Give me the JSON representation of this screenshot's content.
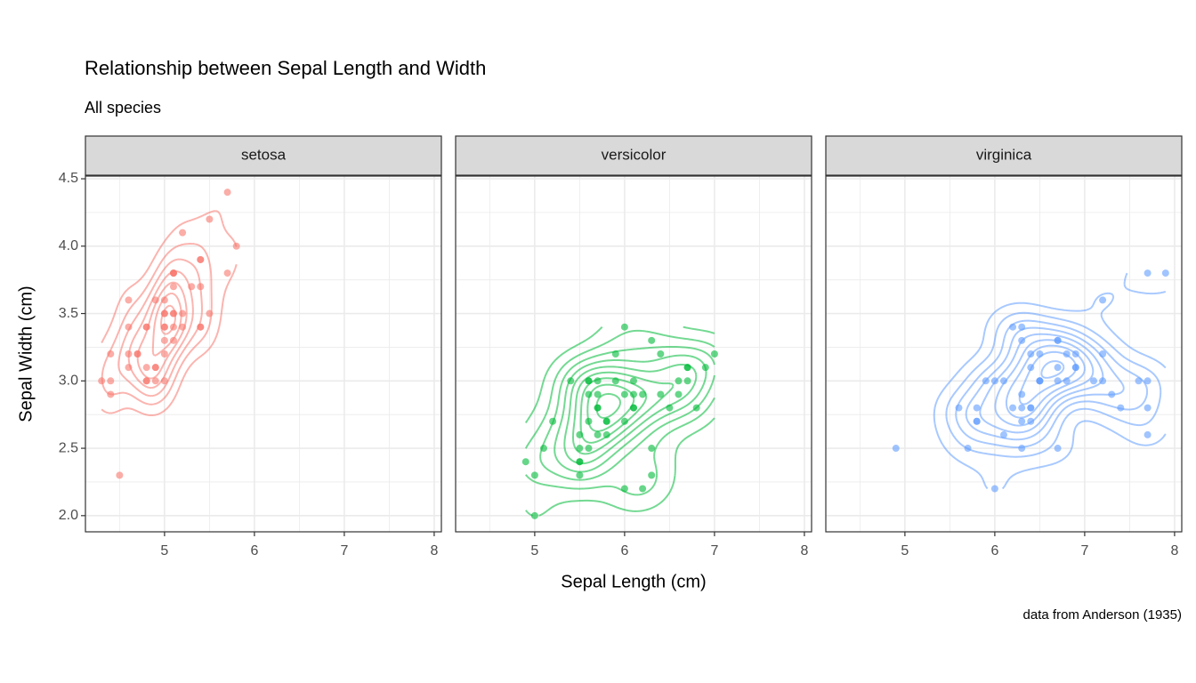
{
  "title": "Relationship between Sepal Length and Width",
  "subtitle": "All species",
  "xlabel": "Sepal Length (cm)",
  "ylabel": "Sepal Width (cm)",
  "caption": "data from Anderson (1935)",
  "chart_data": [
    {
      "type": "scatter",
      "title": "setosa",
      "color": "#F8766D",
      "density_contours": true,
      "grid": true,
      "xlim": [
        4.12,
        8.08
      ],
      "ylim": [
        1.88,
        4.52
      ],
      "xticks": [
        5,
        6,
        7,
        8
      ],
      "yticks": [
        {
          "value": 2,
          "label": "2.0"
        },
        2.5,
        {
          "value": 3,
          "label": "3.0"
        },
        3.5,
        {
          "value": 4,
          "label": "4.0"
        },
        4.5
      ],
      "x": [
        5.1,
        4.9,
        4.7,
        4.6,
        5.0,
        5.4,
        4.6,
        5.0,
        4.4,
        4.9,
        5.4,
        4.8,
        4.8,
        4.3,
        5.8,
        5.7,
        5.4,
        5.1,
        5.7,
        5.1,
        5.4,
        5.1,
        4.6,
        5.1,
        4.8,
        5.0,
        5.0,
        5.2,
        5.2,
        4.7,
        4.8,
        5.4,
        5.2,
        5.5,
        4.9,
        5.0,
        5.5,
        4.9,
        4.4,
        5.1,
        5.0,
        4.5,
        4.4,
        5.0,
        5.1,
        4.8,
        5.1,
        4.6,
        5.3,
        5.0
      ],
      "values": [
        3.5,
        3.0,
        3.2,
        3.1,
        3.6,
        3.9,
        3.4,
        3.4,
        2.9,
        3.1,
        3.7,
        3.4,
        3.0,
        3.0,
        4.0,
        4.4,
        3.9,
        3.5,
        3.8,
        3.8,
        3.4,
        3.7,
        3.6,
        3.3,
        3.4,
        3.0,
        3.4,
        3.5,
        3.4,
        3.2,
        3.1,
        3.4,
        4.1,
        4.2,
        3.1,
        3.2,
        3.5,
        3.6,
        3.0,
        3.4,
        3.5,
        2.3,
        3.2,
        3.5,
        3.8,
        3.0,
        3.8,
        3.2,
        3.7,
        3.3
      ]
    },
    {
      "type": "scatter",
      "title": "versicolor",
      "color": "#00BA38",
      "density_contours": true,
      "grid": true,
      "xlim": [
        4.12,
        8.08
      ],
      "ylim": [
        1.88,
        4.52
      ],
      "xticks": [
        5,
        6,
        7,
        8
      ],
      "yticks": [
        {
          "value": 2,
          "label": "2.0"
        },
        2.5,
        {
          "value": 3,
          "label": "3.0"
        },
        3.5,
        {
          "value": 4,
          "label": "4.0"
        },
        4.5
      ],
      "x": [
        7.0,
        6.4,
        6.9,
        5.5,
        6.5,
        5.7,
        6.3,
        4.9,
        6.6,
        5.2,
        5.0,
        5.9,
        6.0,
        6.1,
        5.6,
        6.7,
        5.6,
        5.8,
        6.2,
        5.6,
        5.9,
        6.1,
        6.3,
        6.1,
        6.4,
        6.6,
        6.8,
        6.7,
        6.0,
        5.7,
        5.5,
        5.5,
        5.8,
        6.0,
        5.4,
        6.0,
        6.7,
        6.3,
        5.6,
        5.5,
        5.5,
        6.1,
        5.8,
        5.0,
        5.6,
        5.7,
        5.7,
        6.2,
        5.1,
        5.7
      ],
      "values": [
        3.2,
        3.2,
        3.1,
        2.3,
        2.8,
        2.8,
        3.3,
        2.4,
        2.9,
        2.7,
        2.0,
        3.0,
        2.2,
        2.9,
        2.9,
        3.1,
        3.0,
        2.7,
        2.2,
        2.5,
        3.2,
        2.8,
        2.5,
        2.8,
        2.9,
        3.0,
        2.8,
        3.0,
        2.9,
        2.6,
        2.4,
        2.4,
        2.7,
        2.7,
        3.0,
        3.4,
        3.1,
        2.3,
        3.0,
        2.5,
        2.6,
        3.0,
        2.6,
        2.3,
        2.7,
        3.0,
        2.9,
        2.9,
        2.5,
        2.8
      ]
    },
    {
      "type": "scatter",
      "title": "virginica",
      "color": "#619CFF",
      "density_contours": true,
      "grid": true,
      "xlim": [
        4.12,
        8.08
      ],
      "ylim": [
        1.88,
        4.52
      ],
      "xticks": [
        5,
        6,
        7,
        8
      ],
      "yticks": [
        {
          "value": 2,
          "label": "2.0"
        },
        2.5,
        {
          "value": 3,
          "label": "3.0"
        },
        3.5,
        {
          "value": 4,
          "label": "4.0"
        },
        4.5
      ],
      "x": [
        6.3,
        5.8,
        7.1,
        6.3,
        6.5,
        7.6,
        4.9,
        7.3,
        6.7,
        7.2,
        6.5,
        6.4,
        6.8,
        5.7,
        5.8,
        6.4,
        6.5,
        7.7,
        7.7,
        6.0,
        6.9,
        5.6,
        7.7,
        6.3,
        6.7,
        7.2,
        6.2,
        6.1,
        6.4,
        7.2,
        7.4,
        7.9,
        6.4,
        6.3,
        6.1,
        7.7,
        6.3,
        6.4,
        6.0,
        6.9,
        6.7,
        6.9,
        5.8,
        6.8,
        6.7,
        6.7,
        6.3,
        6.5,
        6.2,
        5.9
      ],
      "values": [
        3.3,
        2.7,
        3.0,
        2.9,
        3.0,
        3.0,
        2.5,
        2.9,
        2.5,
        3.6,
        3.2,
        2.7,
        3.0,
        2.5,
        2.8,
        3.2,
        3.0,
        3.8,
        2.6,
        2.2,
        3.2,
        2.8,
        2.8,
        2.7,
        3.3,
        3.2,
        2.8,
        3.0,
        2.8,
        3.0,
        2.8,
        3.8,
        2.8,
        2.8,
        2.6,
        3.0,
        3.4,
        3.1,
        3.0,
        3.1,
        3.1,
        3.1,
        2.7,
        3.2,
        3.3,
        3.0,
        2.5,
        3.0,
        3.4,
        3.0
      ]
    }
  ]
}
